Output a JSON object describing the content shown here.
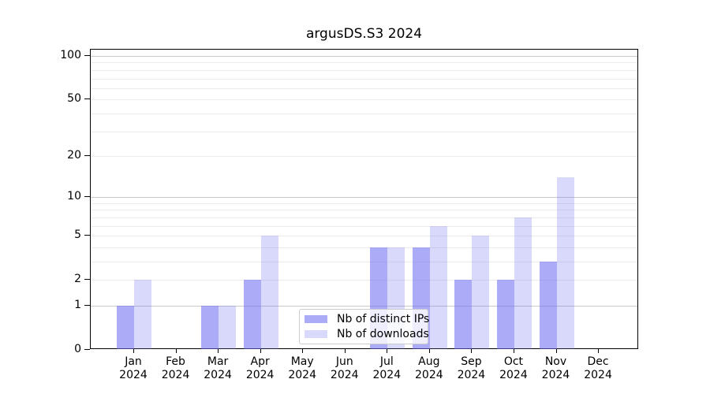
{
  "chart_data": {
    "type": "bar",
    "title": "argusDS.S3 2024",
    "categories": [
      "Jan",
      "Feb",
      "Mar",
      "Apr",
      "May",
      "Jun",
      "Jul",
      "Aug",
      "Sep",
      "Oct",
      "Nov",
      "Dec"
    ],
    "year": "2024",
    "series": [
      {
        "name": "Nb of distinct IPs",
        "color": "rgba(102,102,242,0.55)",
        "values": [
          1,
          0,
          1,
          2,
          0,
          0,
          4,
          4,
          2,
          2,
          3,
          0
        ]
      },
      {
        "name": "Nb of downloads",
        "color": "rgba(102,102,242,0.25)",
        "values": [
          2,
          0,
          1,
          5,
          0,
          0,
          4,
          6,
          5,
          7,
          14,
          0
        ]
      }
    ],
    "yscale": "log1p",
    "ylim": [
      0,
      110.6
    ],
    "y_ticks": [
      0,
      1,
      2,
      5,
      10,
      20,
      50,
      100
    ],
    "y_major_gridlines": [
      1,
      10,
      100
    ],
    "y_minor_gridlines": [
      2,
      3,
      4,
      5,
      6,
      7,
      8,
      9,
      20,
      30,
      40,
      50,
      60,
      70,
      80,
      90
    ],
    "grid": true,
    "legend_position": "lower center inside",
    "xlabel": "",
    "ylabel": ""
  },
  "colors": {
    "grid_major": "#c9c9c9",
    "grid_minor": "#ebebeb",
    "spine": "#000000",
    "background": "#ffffff",
    "legend_border": "#cccccc",
    "legend_bg": "rgba(255,255,255,0.8)"
  }
}
